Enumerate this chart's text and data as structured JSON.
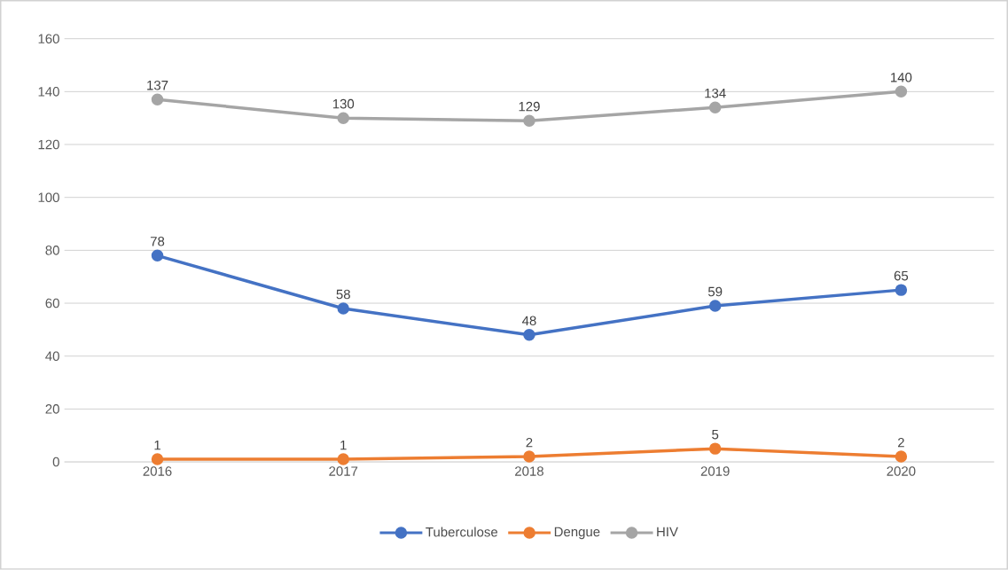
{
  "chart_data": {
    "type": "line",
    "categories": [
      "2016",
      "2017",
      "2018",
      "2019",
      "2020"
    ],
    "series": [
      {
        "name": "Tuberculose",
        "color": "#4472c4",
        "values": [
          78,
          58,
          48,
          59,
          65
        ]
      },
      {
        "name": "Dengue",
        "color": "#ed7d31",
        "values": [
          1,
          1,
          2,
          5,
          2
        ]
      },
      {
        "name": "HIV",
        "color": "#a5a5a5",
        "values": [
          137,
          130,
          129,
          134,
          140
        ]
      }
    ],
    "ylim": [
      0,
      160
    ],
    "yticks": [
      0,
      20,
      40,
      60,
      80,
      100,
      120,
      140,
      160
    ],
    "grid": "y",
    "legend": "bottom",
    "marker": "circle",
    "line_style": "solid",
    "data_labels": true
  }
}
